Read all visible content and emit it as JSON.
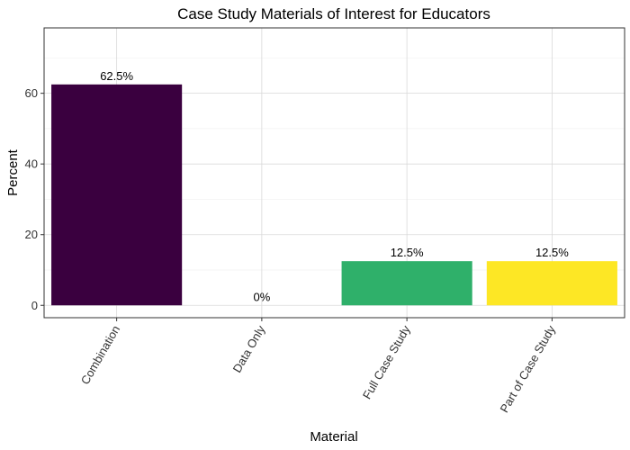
{
  "chart_data": {
    "type": "bar",
    "title": "Case Study Materials of Interest for Educators",
    "xlabel": "Material",
    "ylabel": "Percent",
    "categories": [
      "Combination",
      "Data Only",
      "Full Case Study",
      "Part of Case Study"
    ],
    "values": [
      62.5,
      0,
      12.5,
      12.5
    ],
    "data_labels": [
      "62.5%",
      "0%",
      "12.5%",
      "12.5%"
    ],
    "colors": [
      "#3a003f",
      "#31688e",
      "#2fb06a",
      "#fde725"
    ],
    "ylim": [
      -3.5,
      78.5
    ],
    "yticks": [
      0,
      20,
      40,
      60
    ],
    "ytick_labels": [
      "0",
      "20",
      "40",
      "60"
    ],
    "grid": true,
    "legend": "none"
  }
}
